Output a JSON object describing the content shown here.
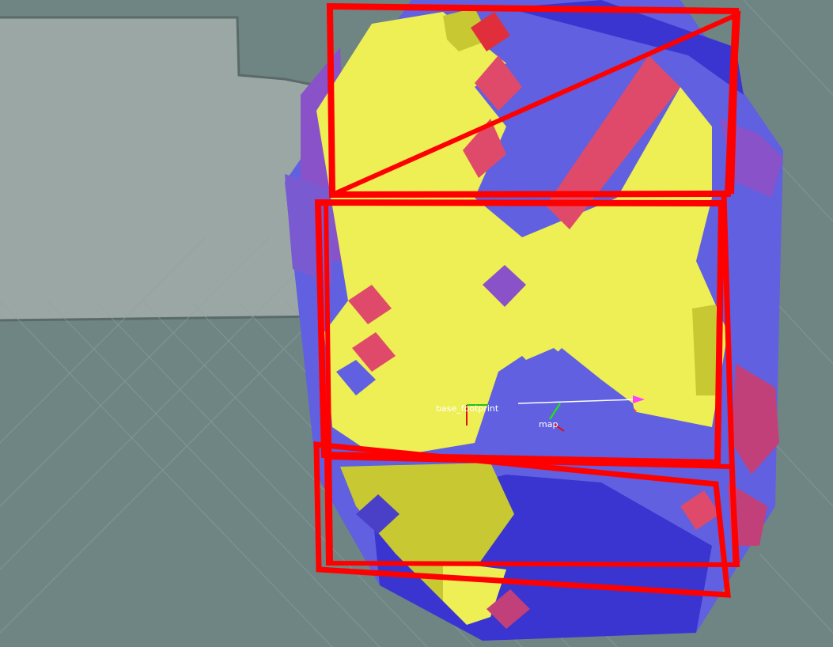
{
  "view": {
    "background_color": "#6f8583",
    "known_free_color": "#9aa7a5",
    "grid_color": "#8fa3a1"
  },
  "costmap": {
    "free_color": "#eeee55",
    "dark_free_color": "#c8c832",
    "inflated_color": "#6060e0",
    "deep_blue_color": "#3a35d0",
    "purple_color": "#8a52c8",
    "lethal_color": "#e04a6a"
  },
  "footprints": {
    "color": "#ff0000",
    "count": 4
  },
  "frames": {
    "base": {
      "label": "base_footprint"
    },
    "map": {
      "label": "map"
    }
  },
  "goal_arrow": {
    "color": "#ff40ff"
  }
}
